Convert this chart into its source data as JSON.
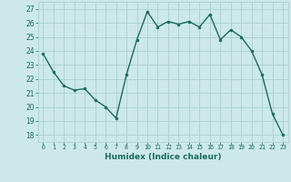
{
  "x": [
    0,
    1,
    2,
    3,
    4,
    5,
    6,
    7,
    8,
    9,
    10,
    11,
    12,
    13,
    14,
    15,
    16,
    17,
    18,
    19,
    20,
    21,
    22,
    23
  ],
  "y": [
    23.8,
    22.5,
    21.5,
    21.2,
    21.3,
    20.5,
    20.0,
    19.2,
    22.3,
    24.8,
    26.8,
    25.7,
    26.1,
    25.9,
    26.1,
    25.7,
    26.6,
    24.8,
    25.5,
    25.0,
    24.0,
    22.3,
    19.5,
    18.0
  ],
  "xlabel": "Humidex (Indice chaleur)",
  "ylim": [
    17.5,
    27.5
  ],
  "xlim": [
    -0.5,
    23.5
  ],
  "yticks": [
    18,
    19,
    20,
    21,
    22,
    23,
    24,
    25,
    26,
    27
  ],
  "xticks": [
    0,
    1,
    2,
    3,
    4,
    5,
    6,
    7,
    8,
    9,
    10,
    11,
    12,
    13,
    14,
    15,
    16,
    17,
    18,
    19,
    20,
    21,
    22,
    23
  ],
  "line_color": "#1a6b5a",
  "marker_color": "#1a6b5a",
  "bg_color": "#cce8e8",
  "grid_color": "#aad0d0",
  "tick_label_color": "#1a6b5a",
  "xlabel_color": "#1a6b5a"
}
